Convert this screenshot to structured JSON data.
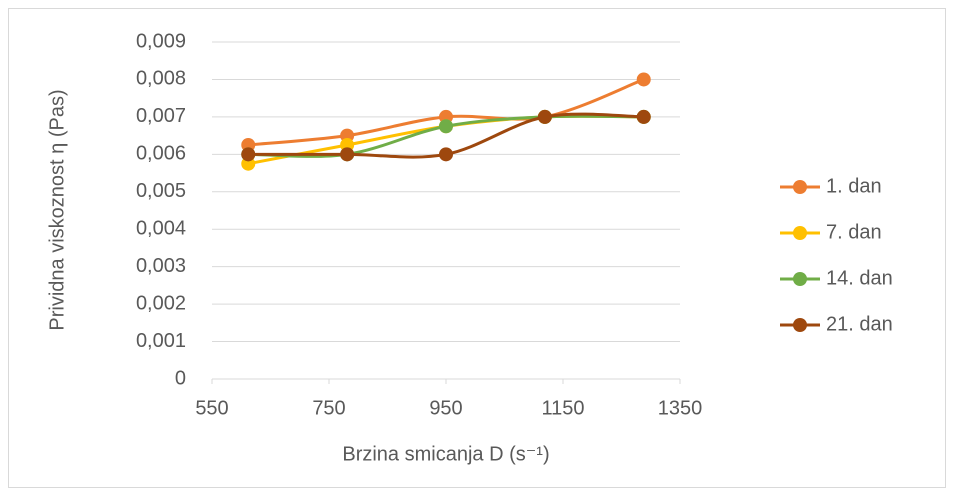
{
  "chart_data": {
    "type": "line",
    "x_label": "Brzina smicanja D (s⁻¹)",
    "y_label": "Prividna viskoznost η (Pas)",
    "xlim": [
      550,
      1350
    ],
    "xticks": [
      550,
      750,
      950,
      1150,
      1350
    ],
    "ylim": [
      0,
      0.009
    ],
    "yticks": [
      0,
      {
        "value": 0.001,
        "label": "0,001"
      },
      {
        "value": 0.002,
        "label": "0,002"
      },
      {
        "value": 0.003,
        "label": "0,003"
      },
      {
        "value": 0.004,
        "label": "0,004"
      },
      {
        "value": 0.005,
        "label": "0,005"
      },
      {
        "value": 0.006,
        "label": "0,006"
      },
      {
        "value": 0.007,
        "label": "0,007"
      },
      {
        "value": 0.008,
        "label": "0,008"
      },
      {
        "value": 0.009,
        "label": "0,009"
      }
    ],
    "grid": true,
    "legend": "right",
    "smooth": true,
    "x": [
      612,
      781,
      950,
      1119,
      1288
    ],
    "series": [
      {
        "name": "1. dan",
        "color": "#ED7D31",
        "values": [
          0.00625,
          0.0065,
          0.007,
          0.007,
          0.008
        ]
      },
      {
        "name": "7. dan",
        "color": "#FFC000",
        "values": [
          0.00575,
          0.00625,
          0.00675,
          0.007,
          0.007
        ]
      },
      {
        "name": "14. dan",
        "color": "#70AD47",
        "values": [
          0.006,
          0.006,
          0.00675,
          0.007,
          0.007
        ]
      },
      {
        "name": "21. dan",
        "color": "#9E480E",
        "values": [
          0.006,
          0.006,
          0.006,
          0.007,
          0.007
        ]
      }
    ]
  }
}
